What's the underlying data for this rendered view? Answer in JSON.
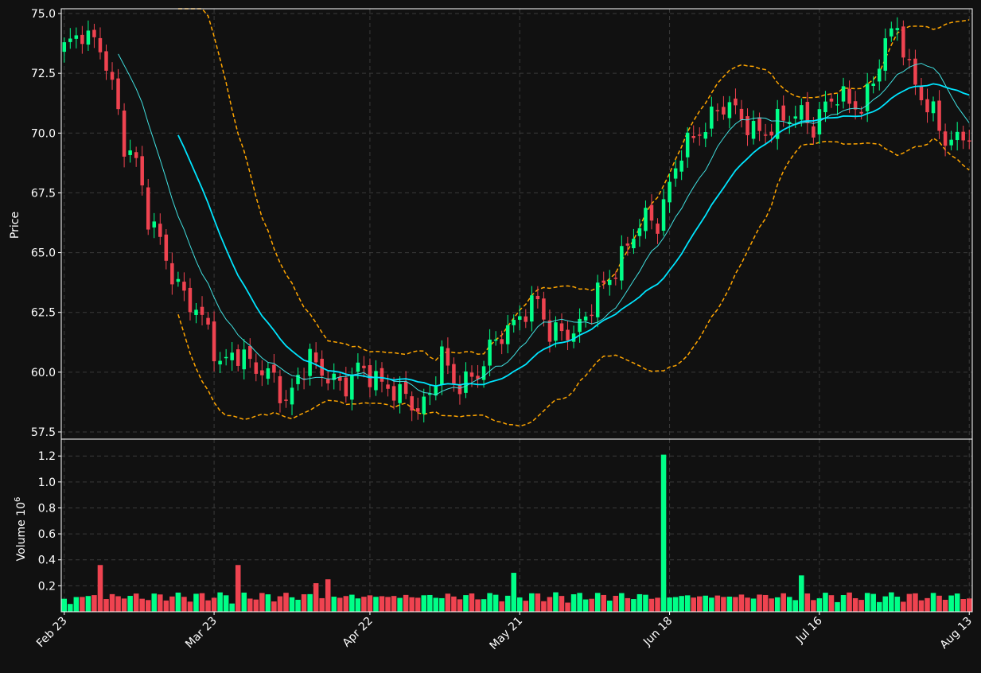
{
  "chart_data": {
    "type": "candlestick",
    "x_tick_labels": [
      "Feb 23",
      "Mar 23",
      "Apr 22",
      "May 21",
      "Jun 18",
      "Jul 16",
      "Aug 13"
    ],
    "price_panel": {
      "ylabel": "Price",
      "ylim": [
        57.2,
        75.2
      ],
      "yticks": [
        57.5,
        60.0,
        62.5,
        65.0,
        67.5,
        70.0,
        72.5,
        75.0
      ],
      "grid": true
    },
    "volume_panel": {
      "ylabel": "Volume",
      "exponent_label": "10",
      "exponent_sup": "6",
      "ylim": [
        0,
        1.33
      ],
      "yticks": [
        0.2,
        0.4,
        0.6,
        0.8,
        1.0,
        1.2
      ],
      "ytick_labels": [
        "0.2",
        "0.4",
        "0.6",
        "0.8",
        "1.0",
        "1.2"
      ],
      "grid": true
    },
    "colors": {
      "background": "#111111",
      "up": "#00ff88",
      "down": "#ef4350",
      "ma_fast": "#40e0e0",
      "ma_slow": "#00e5ff",
      "bollinger": "#ffa500",
      "grid": "#3a3a3a",
      "text": "#ffffff"
    },
    "price_key_points": [
      [
        0,
        73.6
      ],
      [
        3,
        74.2
      ],
      [
        6,
        73.6
      ],
      [
        8,
        72.0
      ],
      [
        10,
        69.5
      ],
      [
        12,
        68.8
      ],
      [
        14,
        66.5
      ],
      [
        16,
        65.5
      ],
      [
        18,
        64.0
      ],
      [
        20,
        63.2
      ],
      [
        22,
        62.6
      ],
      [
        24,
        61.8
      ],
      [
        26,
        60.2
      ],
      [
        28,
        60.8
      ],
      [
        30,
        60.6
      ],
      [
        33,
        60.0
      ],
      [
        35,
        59.8
      ],
      [
        37,
        58.6
      ],
      [
        39,
        59.8
      ],
      [
        41,
        60.6
      ],
      [
        43,
        60.0
      ],
      [
        45,
        59.6
      ],
      [
        47,
        59.4
      ],
      [
        49,
        60.2
      ],
      [
        51,
        59.9
      ],
      [
        53,
        59.5
      ],
      [
        55,
        59.2
      ],
      [
        57,
        59.0
      ],
      [
        59,
        58.4
      ],
      [
        61,
        59.0
      ],
      [
        63,
        60.8
      ],
      [
        65,
        59.5
      ],
      [
        67,
        59.6
      ],
      [
        69,
        59.9
      ],
      [
        71,
        61.0
      ],
      [
        73,
        61.6
      ],
      [
        75,
        62.0
      ],
      [
        77,
        62.6
      ],
      [
        79,
        63.0
      ],
      [
        81,
        61.6
      ],
      [
        83,
        61.7
      ],
      [
        85,
        61.6
      ],
      [
        87,
        62.3
      ],
      [
        89,
        63.4
      ],
      [
        91,
        63.9
      ],
      [
        93,
        64.8
      ],
      [
        95,
        65.8
      ],
      [
        97,
        66.5
      ],
      [
        99,
        66.2
      ],
      [
        101,
        67.8
      ],
      [
        103,
        69.3
      ],
      [
        105,
        69.8
      ],
      [
        107,
        70.3
      ],
      [
        109,
        71.0
      ],
      [
        111,
        71.2
      ],
      [
        113,
        70.6
      ],
      [
        115,
        70.1
      ],
      [
        117,
        70.0
      ],
      [
        119,
        70.5
      ],
      [
        121,
        70.7
      ],
      [
        123,
        70.8
      ],
      [
        125,
        70.2
      ],
      [
        127,
        71.2
      ],
      [
        129,
        71.6
      ],
      [
        131,
        71.3
      ],
      [
        133,
        71.0
      ],
      [
        135,
        72.2
      ],
      [
        137,
        73.8
      ],
      [
        139,
        74.5
      ],
      [
        141,
        72.6
      ],
      [
        143,
        71.5
      ],
      [
        145,
        70.8
      ],
      [
        147,
        69.7
      ],
      [
        149,
        69.7
      ],
      [
        151,
        70.0
      ]
    ],
    "volume_spikes": {
      "1": 0.06,
      "6": 0.36,
      "29": 0.36,
      "42": 0.22,
      "44": 0.25,
      "75": 0.3,
      "100": 1.21,
      "123": 0.28,
      "170": 0.17
    },
    "n_bars": 152,
    "ma_fast_window": 10,
    "ma_slow_window": 20,
    "bollinger_window": 20,
    "bollinger_std": 2
  }
}
